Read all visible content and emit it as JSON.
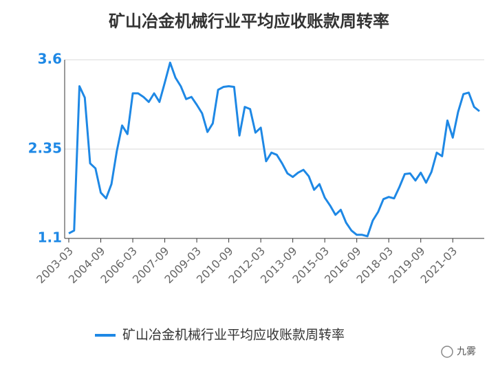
{
  "chart_data": {
    "type": "line",
    "title": "矿山冶金机械行业平均应收账款周转率",
    "categories": [
      "2003-03",
      null,
      null,
      null,
      null,
      null,
      "2004-09",
      null,
      null,
      null,
      null,
      null,
      "2006-03",
      null,
      null,
      null,
      null,
      null,
      "2007-09",
      null,
      null,
      null,
      null,
      null,
      "2009-03",
      null,
      null,
      null,
      null,
      null,
      "2010-09",
      null,
      null,
      null,
      null,
      null,
      "2012-03",
      null,
      null,
      null,
      null,
      null,
      "2013-09",
      null,
      null,
      null,
      null,
      null,
      "2015-03",
      null,
      null,
      null,
      null,
      null,
      "2016-09",
      null,
      null,
      null,
      null,
      null,
      "2018-03",
      null,
      null,
      null,
      null,
      null,
      "2019-09",
      null,
      null,
      null,
      null,
      null,
      "2021-03",
      null,
      null,
      null,
      null,
      null
    ],
    "series": [
      {
        "name": "矿山冶金机械行业平均应收账款周转率",
        "color": "#1e88e5",
        "values": [
          1.17,
          1.21,
          3.23,
          3.07,
          2.15,
          2.08,
          1.74,
          1.66,
          1.86,
          2.32,
          2.68,
          2.56,
          3.13,
          3.13,
          3.08,
          3.01,
          3.13,
          3.01,
          3.28,
          3.56,
          3.35,
          3.23,
          3.05,
          3.08,
          2.97,
          2.85,
          2.59,
          2.71,
          3.18,
          3.22,
          3.23,
          3.22,
          2.54,
          2.94,
          2.91,
          2.58,
          2.65,
          2.18,
          2.3,
          2.27,
          2.15,
          2.01,
          1.96,
          2.02,
          2.06,
          1.97,
          1.78,
          1.86,
          1.67,
          1.56,
          1.43,
          1.5,
          1.32,
          1.21,
          1.15,
          1.15,
          1.13,
          1.35,
          1.47,
          1.65,
          1.68,
          1.66,
          1.82,
          2.0,
          2.01,
          1.91,
          2.02,
          1.88,
          2.03,
          2.3,
          2.25,
          2.75,
          2.51,
          2.87,
          3.12,
          3.14,
          2.94,
          2.88
        ]
      }
    ],
    "ylim": [
      1.1,
      3.6
    ],
    "yticks": [
      1.1,
      2.35,
      3.6
    ],
    "grid": true,
    "legend": "bottom",
    "watermark": "九雾"
  }
}
